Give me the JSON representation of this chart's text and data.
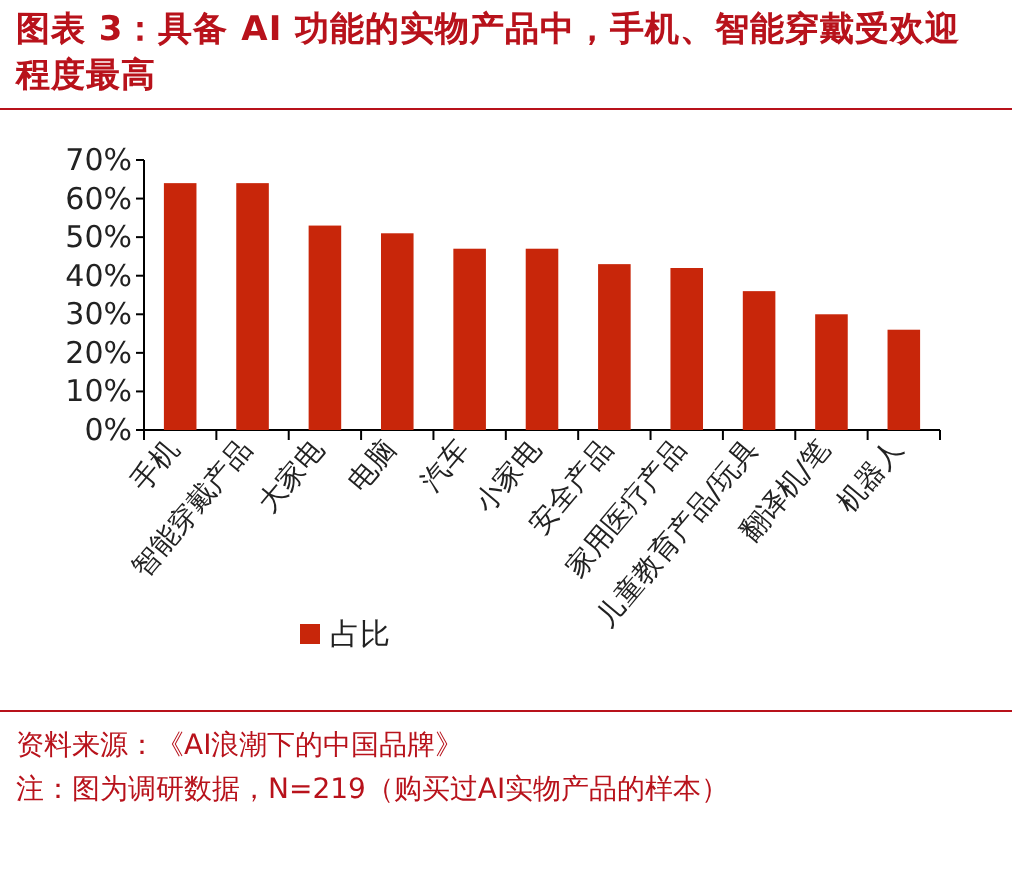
{
  "chart_data": {
    "type": "bar",
    "title": "图表 3：具备 AI 功能的实物产品中，手机、智能穿戴受欢迎程度最高",
    "categories": [
      "手机",
      "智能穿戴产品",
      "大家电",
      "电脑",
      "汽车",
      "小家电",
      "安全产品",
      "家用医疗产品",
      "儿童教育产品/玩具",
      "翻译机/笔",
      "机器人"
    ],
    "series": [
      {
        "name": "占比",
        "color": "#c8260a",
        "values": [
          64,
          64,
          53,
          51,
          47,
          47,
          43,
          42,
          36,
          30,
          26
        ]
      }
    ],
    "ylim": [
      0,
      70
    ],
    "yticks": [
      {
        "value": 0,
        "label": "0%"
      },
      {
        "value": 10,
        "label": "10%"
      },
      {
        "value": 20,
        "label": "20%"
      },
      {
        "value": 30,
        "label": "30%"
      },
      {
        "value": 40,
        "label": "40%"
      },
      {
        "value": 50,
        "label": "50%"
      },
      {
        "value": 60,
        "label": "60%"
      },
      {
        "value": 70,
        "label": "70%"
      }
    ],
    "legend": "bottom",
    "annotations": [
      "资料来源：《AI浪潮下的中国品牌》",
      "注：图为调研数据，N=219（购买过AI实物产品的样本）"
    ]
  }
}
